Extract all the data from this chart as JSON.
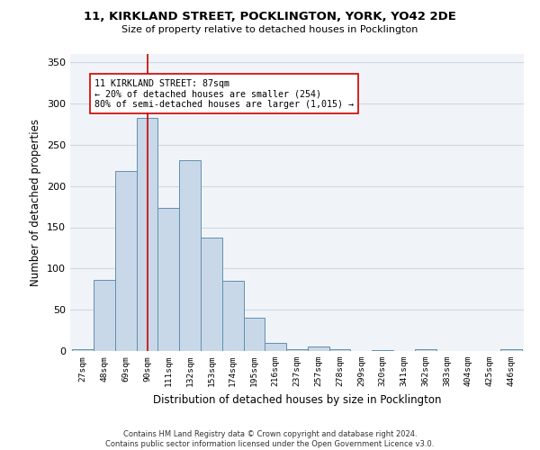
{
  "title": "11, KIRKLAND STREET, POCKLINGTON, YORK, YO42 2DE",
  "subtitle": "Size of property relative to detached houses in Pocklington",
  "xlabel": "Distribution of detached houses by size in Pocklington",
  "ylabel": "Number of detached properties",
  "bar_color": "#c8d8e8",
  "bar_edge_color": "#6090b0",
  "categories": [
    "27sqm",
    "48sqm",
    "69sqm",
    "90sqm",
    "111sqm",
    "132sqm",
    "153sqm",
    "174sqm",
    "195sqm",
    "216sqm",
    "237sqm",
    "257sqm",
    "278sqm",
    "299sqm",
    "320sqm",
    "341sqm",
    "362sqm",
    "383sqm",
    "404sqm",
    "425sqm",
    "446sqm"
  ],
  "values": [
    2,
    86,
    218,
    283,
    174,
    231,
    138,
    85,
    40,
    10,
    2,
    5,
    2,
    0,
    1,
    0,
    2,
    0,
    0,
    0,
    2
  ],
  "vline_x": 3,
  "vline_color": "#cc0000",
  "annotation_text": "11 KIRKLAND STREET: 87sqm\n← 20% of detached houses are smaller (254)\n80% of semi-detached houses are larger (1,015) →",
  "ylim": [
    0,
    360
  ],
  "yticks": [
    0,
    50,
    100,
    150,
    200,
    250,
    300,
    350
  ],
  "grid_color": "#d0d8e0",
  "background_color": "#f0f4f8",
  "footnote": "Contains HM Land Registry data © Crown copyright and database right 2024.\nContains public sector information licensed under the Open Government Licence v3.0."
}
